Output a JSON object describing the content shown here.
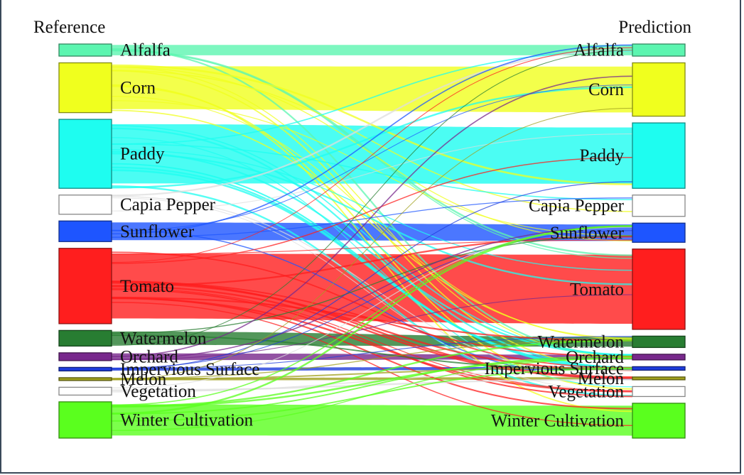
{
  "left_title": "Reference",
  "right_title": "Prediction",
  "classes": [
    {
      "name": "Alfalfa",
      "color": "#5cf5b0",
      "ref": 17,
      "pred": 17
    },
    {
      "name": "Corn",
      "color": "#f0ff1e",
      "ref": 70,
      "pred": 75
    },
    {
      "name": "Paddy",
      "color": "#1efdf0",
      "ref": 97,
      "pred": 92
    },
    {
      "name": "Capia Pepper",
      "color": "#ffffff",
      "ref": 27,
      "pred": 30
    },
    {
      "name": "Sunflower",
      "color": "#1e55ff",
      "ref": 29,
      "pred": 27
    },
    {
      "name": "Tomato",
      "color": "#ff1e1e",
      "ref": 106,
      "pred": 113
    },
    {
      "name": "Watermelon",
      "color": "#287d32",
      "ref": 22,
      "pred": 16
    },
    {
      "name": "Orchard",
      "color": "#78288c",
      "ref": 11,
      "pred": 8
    },
    {
      "name": "Impervious Surface",
      "color": "#1e3cdc",
      "ref": 5,
      "pred": 5
    },
    {
      "name": "Melon",
      "color": "#a0a01e",
      "ref": 4,
      "pred": 4
    },
    {
      "name": "Vegetation",
      "color": "#ffffff",
      "ref": 11,
      "pred": 14
    },
    {
      "name": "Winter Cultivation",
      "color": "#5aff1e",
      "ref": 51,
      "pred": 49
    }
  ]
}
